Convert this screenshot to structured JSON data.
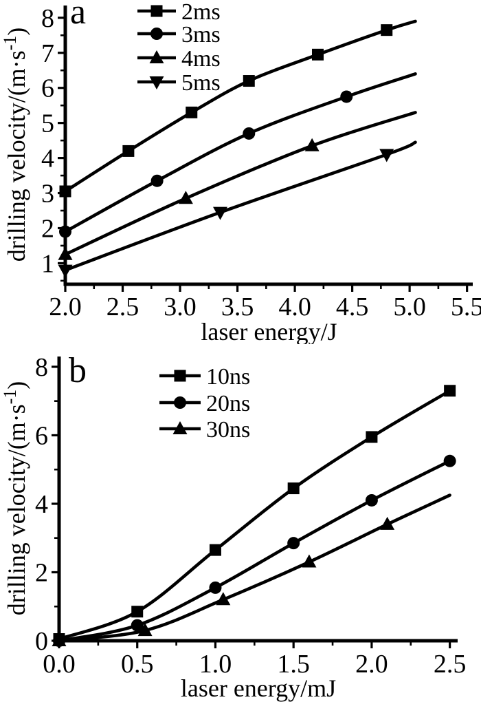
{
  "figure": {
    "background": "#ffffff",
    "ink_color": "#000000",
    "panels": [
      "a",
      "b"
    ]
  },
  "chart_data": [
    {
      "type": "line",
      "panel_label": "a",
      "xlabel": "laser energy/J",
      "ylabel": "drilling velocity/(m·s⁻¹)",
      "ylabel_parts": [
        {
          "t": "drilling velocity/(m·s"
        },
        {
          "t": "-1",
          "sup": true
        },
        {
          "t": ")"
        }
      ],
      "xlim": [
        2.0,
        5.55
      ],
      "ylim": [
        0.4,
        8.35
      ],
      "x_major_ticks": [
        2.0,
        2.5,
        3.0,
        3.5,
        4.0,
        4.5,
        5.0,
        5.5
      ],
      "x_minor_ticks": [
        2.25,
        2.75,
        3.25,
        3.75,
        4.25,
        4.75,
        5.25
      ],
      "y_major_ticks": [
        1,
        2,
        3,
        4,
        5,
        6,
        7,
        8
      ],
      "y_minor_ticks": [
        0.5,
        1.5,
        2.5,
        3.5,
        4.5,
        5.5,
        6.5,
        7.5
      ],
      "x_decimals": 1,
      "y_decimals": 0,
      "grid": false,
      "legend_position": "top-left-inside",
      "series": [
        {
          "name": "2ms",
          "marker": "square",
          "x": [
            2.0,
            2.55,
            3.1,
            3.6,
            4.2,
            4.8
          ],
          "y": [
            3.05,
            4.2,
            5.3,
            6.2,
            6.95,
            7.65
          ],
          "line_end": [
            5.05,
            7.9
          ]
        },
        {
          "name": "3ms",
          "marker": "circle",
          "x": [
            2.0,
            2.8,
            3.6,
            4.45
          ],
          "y": [
            1.9,
            3.35,
            4.7,
            5.75
          ],
          "line_end": [
            5.05,
            6.4
          ]
        },
        {
          "name": "4ms",
          "marker": "triangle-up",
          "x": [
            2.0,
            3.05,
            4.15
          ],
          "y": [
            1.25,
            2.85,
            4.35
          ],
          "line_end": [
            5.05,
            5.3
          ]
        },
        {
          "name": "5ms",
          "marker": "triangle-down",
          "x": [
            2.0,
            3.35,
            4.8
          ],
          "y": [
            0.8,
            2.45,
            4.1
          ],
          "line_end": [
            5.05,
            4.45
          ]
        }
      ]
    },
    {
      "type": "line",
      "panel_label": "b",
      "xlabel": "laser energy/mJ",
      "ylabel": "drilling velocity/(m·s⁻¹)",
      "ylabel_parts": [
        {
          "t": "drilling velocity/(m·s"
        },
        {
          "t": "-1",
          "sup": true
        },
        {
          "t": ")"
        }
      ],
      "xlim": [
        0.0,
        2.55
      ],
      "ylim": [
        0.0,
        8.3
      ],
      "x_major_ticks": [
        0.0,
        0.5,
        1.0,
        1.5,
        2.0,
        2.5
      ],
      "x_minor_ticks": [
        0.25,
        0.75,
        1.25,
        1.75,
        2.25
      ],
      "y_major_ticks": [
        0,
        2,
        4,
        6,
        8
      ],
      "y_minor_ticks": [
        1,
        3,
        5,
        7
      ],
      "x_decimals": 1,
      "y_decimals": 0,
      "grid": false,
      "legend_position": "top-left-inside",
      "series": [
        {
          "name": "10ns",
          "marker": "square",
          "x": [
            0.0,
            0.5,
            1.0,
            1.5,
            2.0,
            2.5
          ],
          "y": [
            0.05,
            0.85,
            2.65,
            4.45,
            5.95,
            7.3
          ]
        },
        {
          "name": "20ns",
          "marker": "circle",
          "x": [
            0.0,
            0.5,
            1.0,
            1.5,
            2.0,
            2.5
          ],
          "y": [
            0.0,
            0.45,
            1.55,
            2.85,
            4.1,
            5.25
          ]
        },
        {
          "name": "30ns",
          "marker": "triangle-up",
          "x": [
            0.0,
            0.55,
            1.05,
            1.6,
            2.1
          ],
          "y": [
            0.0,
            0.3,
            1.2,
            2.3,
            3.4
          ],
          "line_end": [
            2.5,
            4.25
          ]
        }
      ]
    }
  ]
}
